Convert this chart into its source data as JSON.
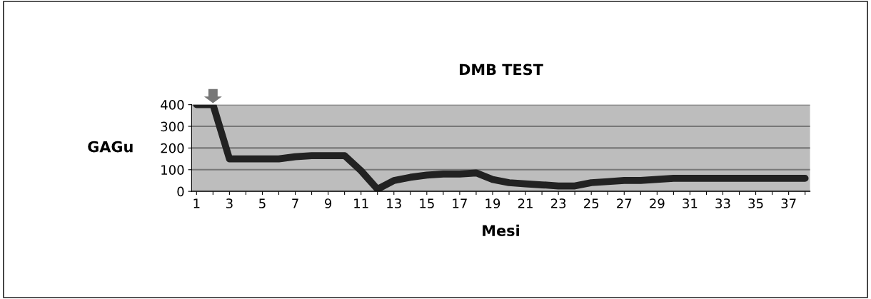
{
  "chart_data": {
    "type": "line",
    "title": "DMB TEST",
    "xlabel": "Mesi",
    "ylabel": "GAGu",
    "categories": [
      "1",
      null,
      "3",
      null,
      "5",
      null,
      "7",
      null,
      "9",
      null,
      "11",
      null,
      "13",
      null,
      "15",
      null,
      "17",
      null,
      "19",
      null,
      "21",
      null,
      "23",
      null,
      "25",
      null,
      "27",
      null,
      "29",
      null,
      "31",
      null,
      "33",
      null,
      "35",
      null,
      "37",
      null
    ],
    "series": [
      {
        "color": "#222222",
        "values": [
          400,
          400,
          150,
          150,
          150,
          150,
          160,
          165,
          165,
          165,
          95,
          10,
          50,
          65,
          75,
          80,
          80,
          85,
          55,
          40,
          35,
          30,
          25,
          25,
          40,
          45,
          50,
          50,
          55,
          60,
          60,
          60,
          60,
          60,
          60,
          60,
          60,
          60
        ]
      }
    ],
    "ylim": [
      0,
      400
    ],
    "yticks": [
      0,
      100,
      200,
      300,
      400
    ],
    "grid": "y",
    "marker": "none",
    "line_style": "solid"
  }
}
